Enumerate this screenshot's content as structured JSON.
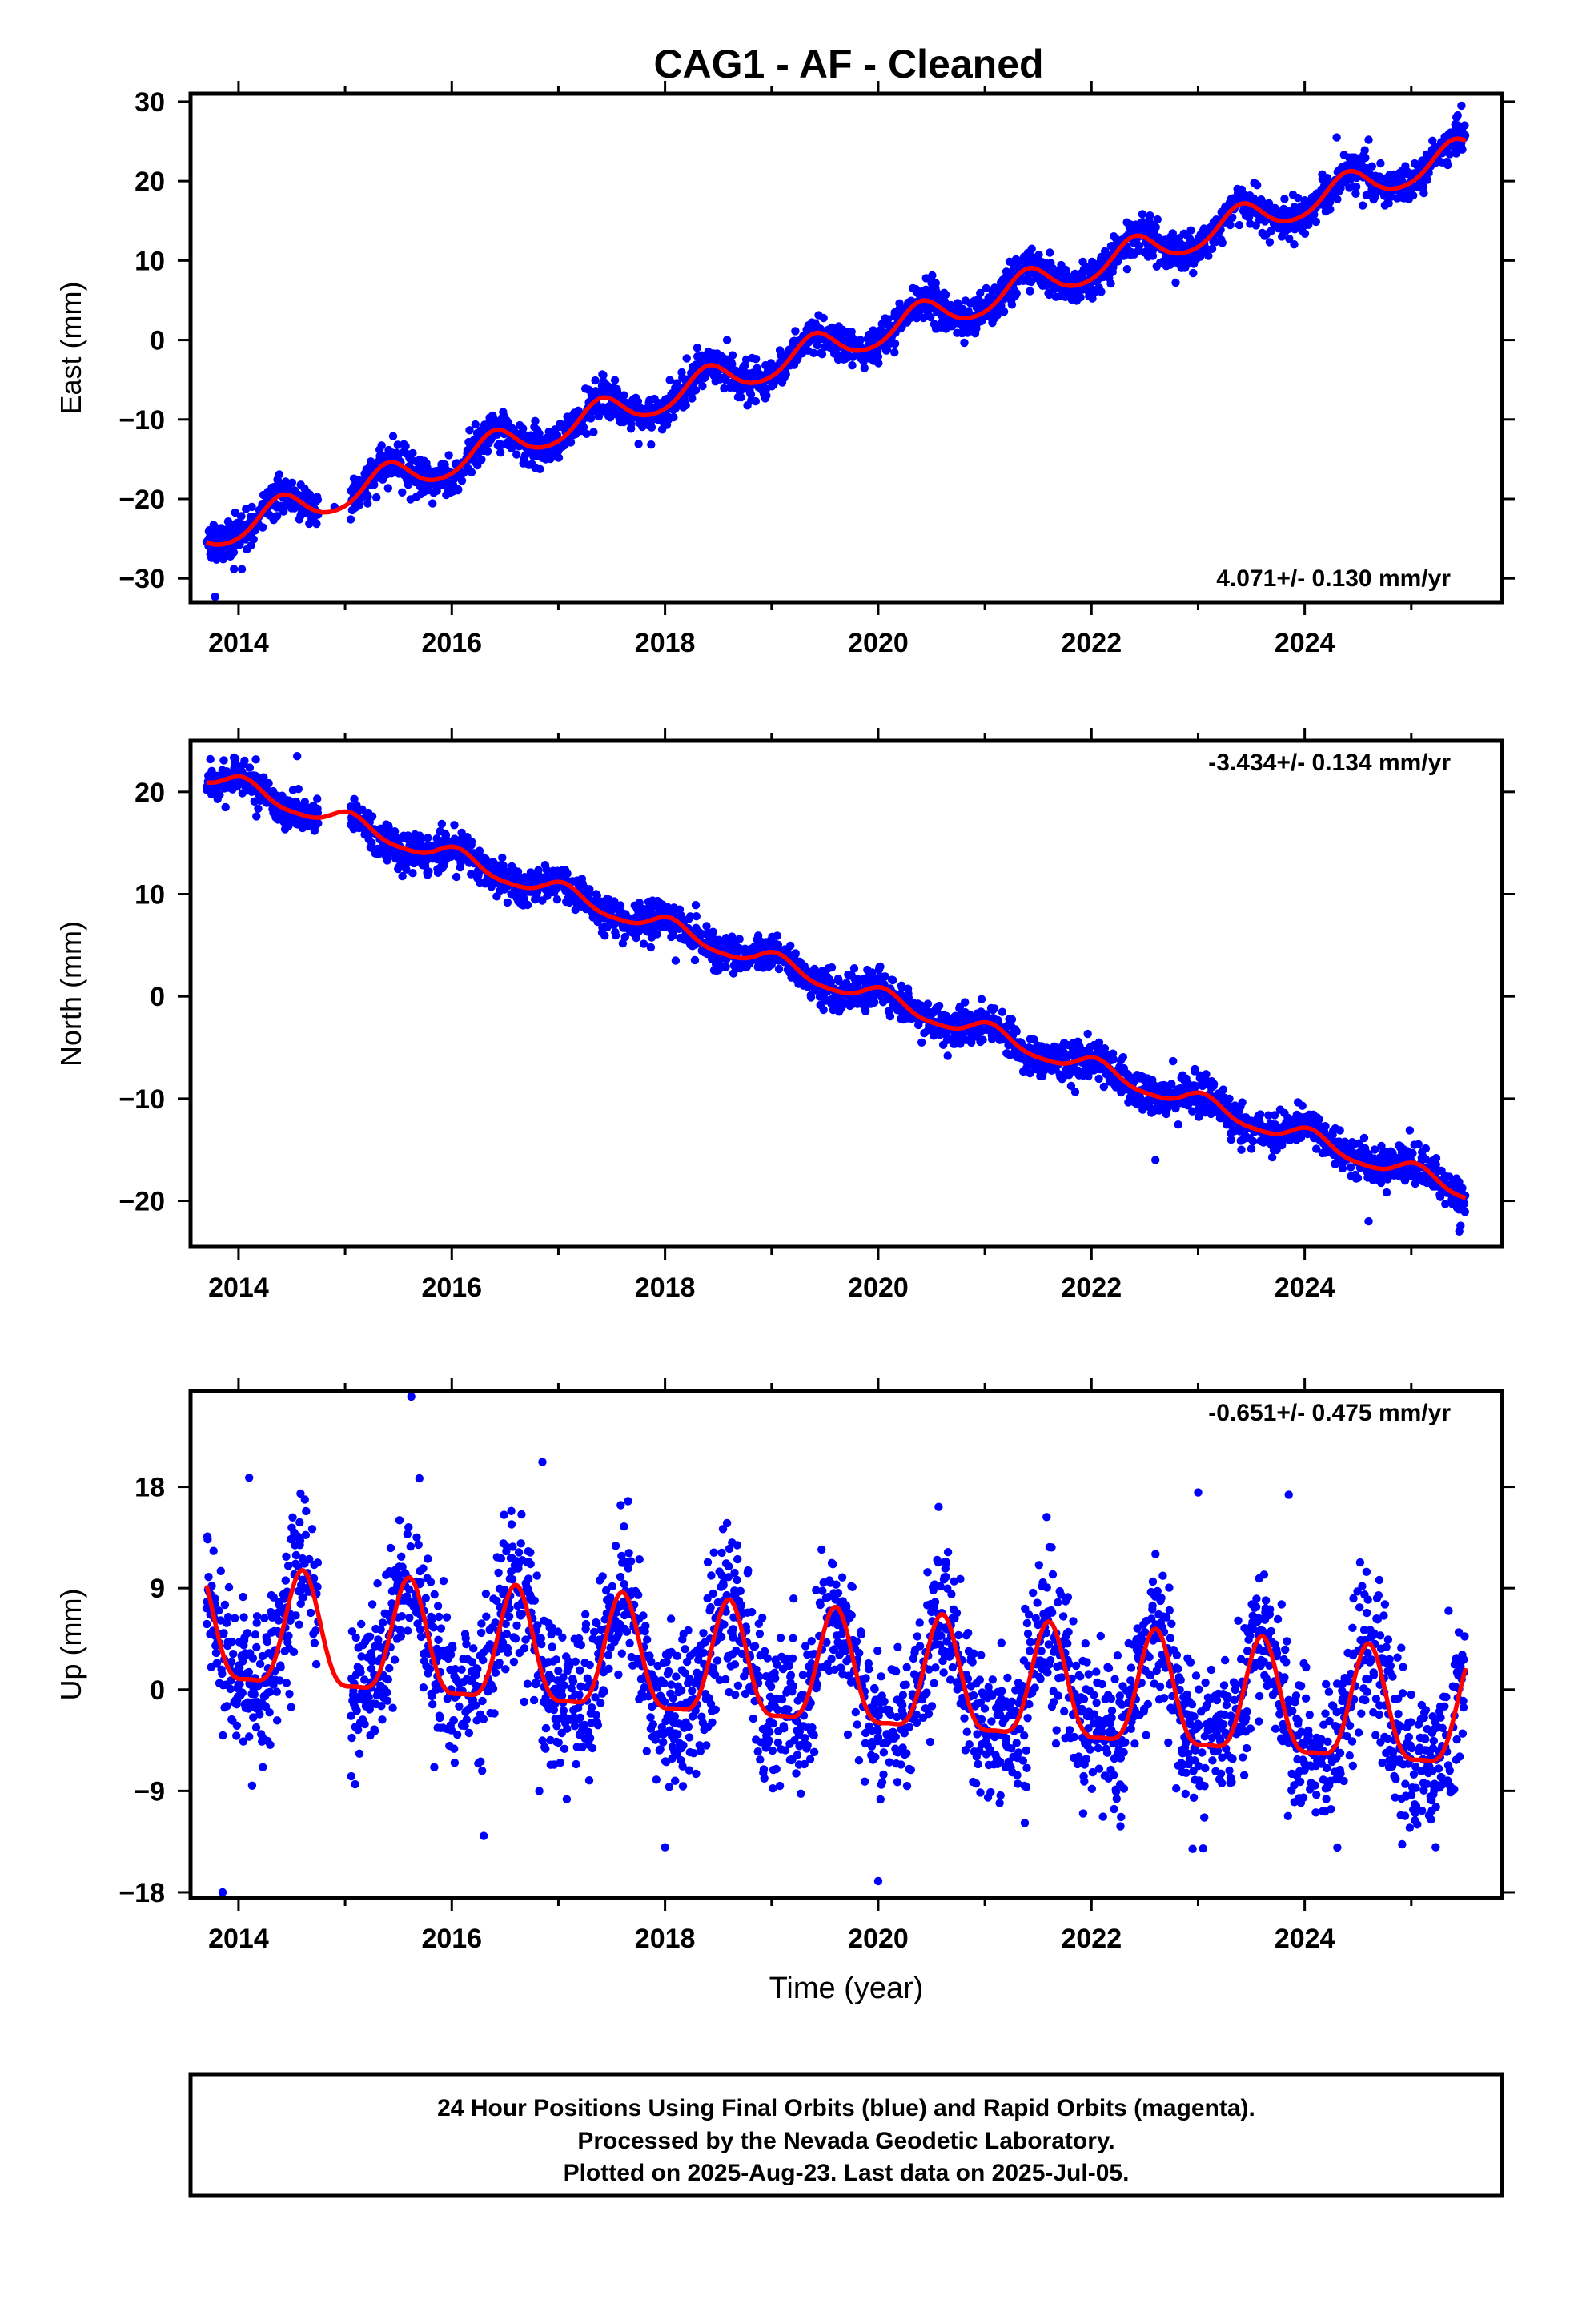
{
  "title": "CAG1  - AF - Cleaned",
  "footer": {
    "lines": [
      "24 Hour Positions Using Final Orbits (blue) and Rapid Orbits (magenta).",
      "Processed by the Nevada Geodetic Laboratory.",
      "Plotted on 2025-Aug-23. Last data on 2025-Jul-05."
    ]
  },
  "colors": {
    "points": "#0000ff",
    "fit": "#ff0000",
    "frame": "#000000"
  },
  "chart_data": [
    {
      "type": "scatter",
      "id": "east",
      "ylabel": "East (mm)",
      "xlabel": "",
      "xlim": [
        2013.55,
        2025.85
      ],
      "ylim": [
        -33,
        31
      ],
      "xticks": [
        2014,
        2016,
        2018,
        2020,
        2022,
        2024
      ],
      "yticks": [
        -30,
        -20,
        -10,
        0,
        10,
        20,
        30
      ],
      "rate_label": "4.071+/- 0.130 mm/yr",
      "rate_position": "bottom-right",
      "t_start": 2013.7,
      "t_end": 2025.51,
      "gap": [
        2014.75,
        2015.05
      ],
      "model": {
        "x0": 2019.5,
        "intercept": -1.0,
        "slope": 4.071,
        "amp_annual": 2.0,
        "phase_peak": 0.4,
        "amp_semi": 0.25,
        "offsets": []
      },
      "noise_sd": 1.2,
      "outliers": [
        [
          2013.78,
          -32.3
        ],
        [
          2014.9,
          -21.0
        ],
        [
          2021.0,
          3.5
        ],
        [
          2023.1,
          14.0
        ],
        [
          2024.3,
          25.5
        ],
        [
          2024.6,
          25.2
        ],
        [
          2025.47,
          29.5
        ]
      ]
    },
    {
      "type": "scatter",
      "id": "north",
      "ylabel": "North (mm)",
      "xlabel": "",
      "xlim": [
        2013.55,
        2025.85
      ],
      "ylim": [
        -24.5,
        25
      ],
      "xticks": [
        2014,
        2016,
        2018,
        2020,
        2022,
        2024
      ],
      "yticks": [
        -20,
        -10,
        0,
        10,
        20
      ],
      "rate_label": "-3.434+/- 0.134 mm/yr",
      "rate_position": "top-right",
      "t_start": 2013.7,
      "t_end": 2025.51,
      "gap": [
        2014.75,
        2015.05
      ],
      "model": {
        "x0": 2019.5,
        "intercept": 1.6,
        "slope": -3.434,
        "amp_annual": 0.9,
        "phase_peak": 0.05,
        "amp_semi": 0.2,
        "offsets": []
      },
      "noise_sd": 0.9,
      "outliers": [
        [
          2014.55,
          23.5
        ],
        [
          2017.7,
          6.2
        ],
        [
          2018.1,
          3.5
        ],
        [
          2022.6,
          -16.0
        ],
        [
          2023.5,
          -14.9
        ],
        [
          2024.6,
          -22.0
        ],
        [
          2025.45,
          -23.0
        ]
      ]
    },
    {
      "type": "scatter",
      "id": "up",
      "ylabel": "Up (mm)",
      "xlabel": "Time (year)",
      "xlim": [
        2013.55,
        2025.85
      ],
      "ylim": [
        -18.5,
        26.5
      ],
      "xticks": [
        2014,
        2016,
        2018,
        2020,
        2022,
        2024
      ],
      "yticks": [
        -18,
        -9,
        0,
        9,
        18
      ],
      "rate_label": "-0.651+/- 0.475 mm/yr",
      "rate_position": "top-right",
      "t_start": 2013.7,
      "t_end": 2025.51,
      "gap": [
        2014.75,
        2015.05
      ],
      "model": {
        "x0": 2019.5,
        "intercept": 1.0,
        "slope": -0.651,
        "amp_annual": 5.0,
        "phase_peak": 0.6,
        "amp_semi": 1.4,
        "offsets": []
      },
      "noise_sd": 3.3,
      "outliers": [
        [
          2015.62,
          26.0
        ],
        [
          2013.85,
          -18.0
        ],
        [
          2014.1,
          18.8
        ],
        [
          2016.85,
          20.2
        ],
        [
          2020.0,
          -17.0
        ],
        [
          2023.0,
          17.5
        ],
        [
          2023.85,
          17.3
        ],
        [
          2016.3,
          -13.0
        ],
        [
          2018.0,
          -14.0
        ]
      ]
    }
  ]
}
